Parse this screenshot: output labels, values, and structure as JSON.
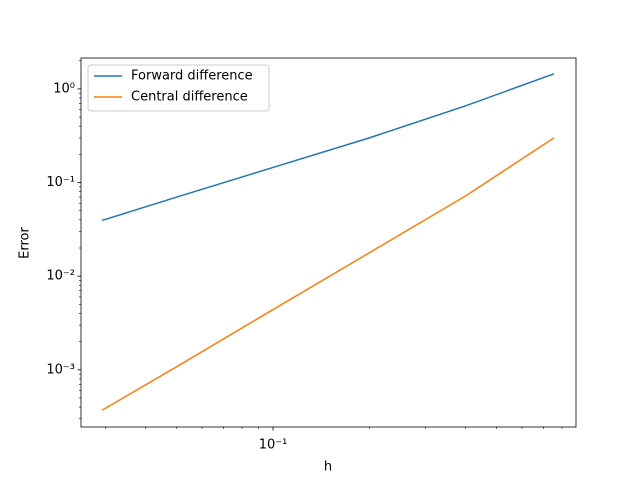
{
  "chart_data": {
    "type": "line",
    "xlabel": "h",
    "ylabel": "Error",
    "x": [
      0.0292,
      0.05,
      0.1,
      0.2,
      0.4,
      0.755
    ],
    "series": [
      {
        "name": "Forward difference",
        "color": "#1f77b4",
        "values": [
          0.0394,
          0.07,
          0.145,
          0.3,
          0.66,
          1.45
        ]
      },
      {
        "name": "Central difference",
        "color": "#ff7f0e",
        "values": [
          0.00037,
          0.00108,
          0.0044,
          0.0178,
          0.072,
          0.3
        ]
      }
    ],
    "xscale": "log",
    "yscale": "log",
    "xlim": [
      0.0251,
      0.885
    ],
    "ylim": [
      0.000245,
      2.14
    ],
    "xticks": [
      {
        "value": 0.1,
        "label": "10⁻¹"
      }
    ],
    "yticks": [
      {
        "value": 0.001,
        "label": "10⁻³"
      },
      {
        "value": 0.01,
        "label": "10⁻²"
      },
      {
        "value": 0.1,
        "label": "10⁻¹"
      },
      {
        "value": 1,
        "label": "10⁰"
      }
    ],
    "xminorticks": [
      0.03,
      0.04,
      0.05,
      0.06,
      0.07,
      0.08,
      0.09,
      0.2,
      0.3,
      0.4,
      0.5,
      0.6,
      0.7,
      0.8
    ],
    "yminorticks": [
      0.0003,
      0.0004,
      0.0005,
      0.0006,
      0.0007,
      0.0008,
      0.0009,
      0.002,
      0.003,
      0.004,
      0.005,
      0.006,
      0.007,
      0.008,
      0.009,
      0.02,
      0.03,
      0.04,
      0.05,
      0.06,
      0.07,
      0.08,
      0.09,
      0.2,
      0.3,
      0.4,
      0.5,
      0.6,
      0.7,
      0.8,
      0.9,
      2
    ],
    "legend": "upper left",
    "grid": false
  }
}
